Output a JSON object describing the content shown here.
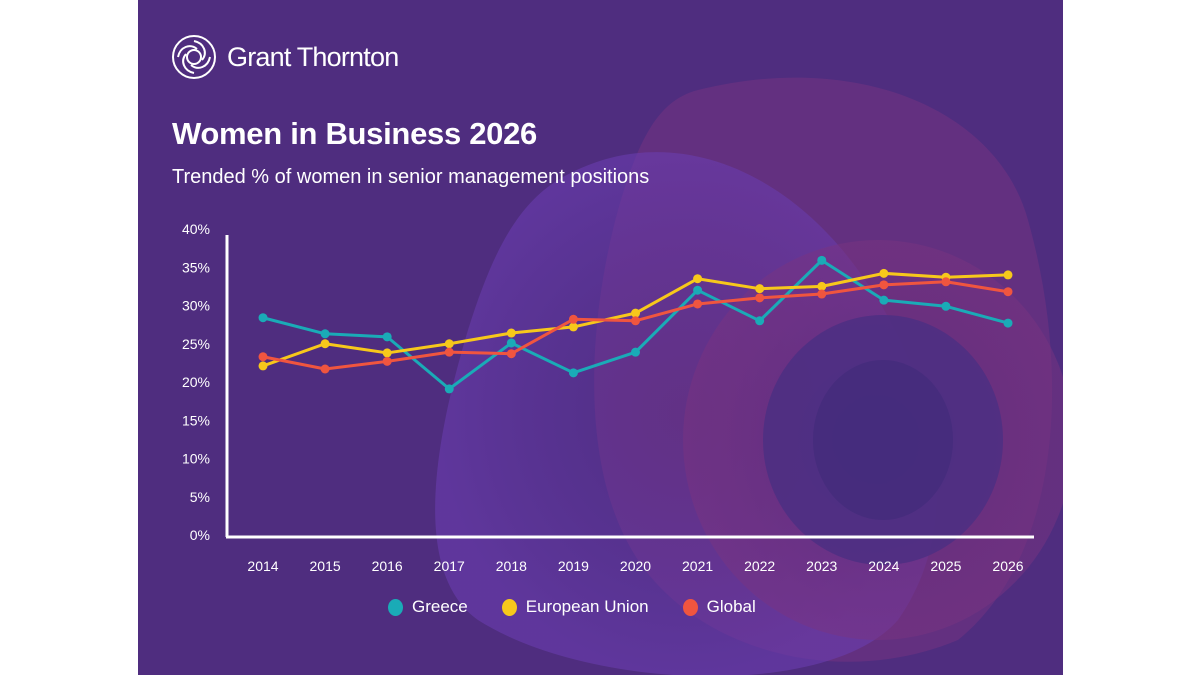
{
  "brand": {
    "logo_icon": "grant-thornton-swirl-icon",
    "name": "Grant Thornton"
  },
  "colors": {
    "background": "#4f2d7f",
    "greece": "#1aabb7",
    "european_union": "#f7c81b",
    "global": "#f0553f",
    "axis": "#ffffff",
    "text": "#ffffff"
  },
  "chart_data": {
    "type": "line",
    "title": "Women in Business 2026",
    "subtitle": "Trended % of women in senior management positions",
    "xlabel": "",
    "ylabel": "",
    "x": [
      "2014",
      "2015",
      "2016",
      "2017",
      "2018",
      "2019",
      "2020",
      "2021",
      "2022",
      "2023",
      "2024",
      "2025",
      "2026"
    ],
    "ylim": [
      0,
      40
    ],
    "y_ticks": [
      "0%",
      "5%",
      "10%",
      "15%",
      "20%",
      "25%",
      "30%",
      "35%",
      "40%"
    ],
    "grid": false,
    "legend_position": "bottom-center",
    "series": [
      {
        "name": "Greece",
        "color": "#1aabb7",
        "values": [
          28.4,
          26.3,
          25.9,
          19.1,
          25.1,
          21.2,
          23.9,
          32.0,
          28.0,
          35.9,
          30.7,
          29.9,
          27.7
        ]
      },
      {
        "name": "European Union",
        "color": "#f7c81b",
        "values": [
          22.1,
          25.0,
          23.8,
          25.0,
          26.4,
          27.2,
          29.0,
          33.5,
          32.2,
          32.5,
          34.2,
          33.7,
          34.0
        ]
      },
      {
        "name": "Global",
        "color": "#f0553f",
        "values": [
          23.3,
          21.7,
          22.7,
          23.9,
          23.7,
          28.2,
          28.0,
          30.2,
          31.0,
          31.5,
          32.7,
          33.1,
          31.8
        ]
      }
    ]
  }
}
